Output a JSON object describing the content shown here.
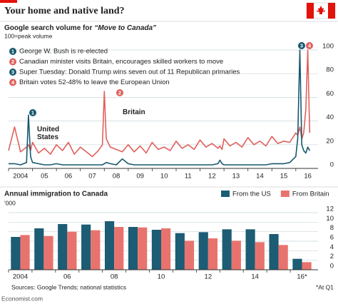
{
  "header": {
    "title": "Your home and native land?"
  },
  "chart_data": [
    {
      "type": "line",
      "subtitle": "Google search volume for",
      "subtitle_query": "“Move to Canada”",
      "y_label": "100=peak volume",
      "annotations": [
        {
          "number": "1",
          "text": "George W. Bush is re-elected",
          "color": "#17586f"
        },
        {
          "number": "2",
          "text": "Canadian minister visits Britain, encourages skilled workers to move",
          "color": "#e0605c"
        },
        {
          "number": "3",
          "text": "Super Tuesday: Donald Trump wins seven out of 11 Republican primaries",
          "color": "#17586f"
        },
        {
          "number": "4",
          "text": "Britain votes 52-48% to leave the European Union",
          "color": "#e0605c"
        }
      ],
      "x": [
        2004.0,
        2004.25,
        2004.5,
        2004.75,
        2004.83,
        2004.92,
        2005.0,
        2005.25,
        2005.5,
        2005.75,
        2006.0,
        2006.25,
        2006.5,
        2006.75,
        2007.0,
        2007.25,
        2007.5,
        2007.75,
        2007.92,
        2008.0,
        2008.08,
        2008.25,
        2008.5,
        2008.75,
        2009.0,
        2009.25,
        2009.5,
        2009.75,
        2010.0,
        2010.25,
        2010.5,
        2010.75,
        2011.0,
        2011.25,
        2011.5,
        2011.75,
        2012.0,
        2012.25,
        2012.5,
        2012.75,
        2012.83,
        2012.92,
        2013.0,
        2013.25,
        2013.5,
        2013.75,
        2014.0,
        2014.25,
        2014.5,
        2014.75,
        2015.0,
        2015.25,
        2015.5,
        2015.75,
        2016.0,
        2016.08,
        2016.17,
        2016.25,
        2016.33,
        2016.42,
        2016.5,
        2016.58
      ],
      "series": [
        {
          "name": "United States",
          "color": "#17586f",
          "values": [
            4,
            4,
            3,
            5,
            45,
            10,
            5,
            4,
            3,
            3,
            4,
            3,
            3,
            3,
            3,
            3,
            3,
            3,
            3,
            4,
            5,
            4,
            3,
            8,
            4,
            3,
            3,
            3,
            3,
            3,
            3,
            3,
            3,
            3,
            3,
            3,
            3,
            3,
            3,
            4,
            7,
            4,
            3,
            3,
            3,
            3,
            3,
            3,
            3,
            3,
            4,
            4,
            4,
            5,
            10,
            25,
            100,
            20,
            15,
            13,
            18,
            15
          ]
        },
        {
          "name": "Britain",
          "color": "#e0605c",
          "values": [
            15,
            35,
            14,
            18,
            20,
            15,
            22,
            13,
            17,
            12,
            20,
            15,
            22,
            12,
            18,
            14,
            10,
            15,
            20,
            65,
            25,
            18,
            16,
            14,
            20,
            14,
            19,
            13,
            22,
            16,
            18,
            15,
            23,
            17,
            20,
            16,
            24,
            18,
            21,
            17,
            19,
            16,
            25,
            19,
            22,
            18,
            26,
            20,
            23,
            19,
            27,
            21,
            23,
            22,
            30,
            28,
            35,
            25,
            30,
            50,
            100,
            30
          ]
        }
      ],
      "xlim": [
        2004,
        2016.75
      ],
      "xticks": [
        2004,
        {
          "value": 2005,
          "label": "05"
        },
        {
          "value": 2006,
          "label": "06"
        },
        {
          "value": 2007,
          "label": "07"
        },
        {
          "value": 2008,
          "label": "08"
        },
        {
          "value": 2009,
          "label": "09"
        },
        {
          "value": 2010,
          "label": "10"
        },
        {
          "value": 2011,
          "label": "11"
        },
        {
          "value": 2012,
          "label": "12"
        },
        {
          "value": 2013,
          "label": "13"
        },
        {
          "value": 2014,
          "label": "14"
        },
        {
          "value": 2015,
          "label": "15"
        },
        {
          "value": 2016,
          "label": "16"
        }
      ],
      "ylim": [
        0,
        100
      ],
      "yticks": [
        0,
        20,
        40,
        60,
        80,
        100
      ],
      "grid": true
    },
    {
      "type": "bar",
      "subtitle": "Annual immigration to Canada",
      "y_label": "'000",
      "categories": [
        "2004",
        null,
        "06",
        null,
        "08",
        null,
        "10",
        null,
        "12",
        null,
        "14",
        null,
        "16*"
      ],
      "series": [
        {
          "name": "From the US",
          "color": "#1c5c74",
          "values": [
            6.9,
            8.7,
            9.6,
            9.5,
            10.2,
            9.0,
            8.4,
            7.7,
            7.9,
            8.5,
            8.5,
            7.5,
            2.3
          ]
        },
        {
          "name": "From Britain",
          "color": "#e8736e",
          "values": [
            7.3,
            7.1,
            8.0,
            8.3,
            9.0,
            8.9,
            8.7,
            6.1,
            6.6,
            6.1,
            5.8,
            5.2,
            1.6
          ]
        }
      ],
      "ylim": [
        0,
        12
      ],
      "yticks": [
        0,
        2,
        4,
        6,
        8,
        10,
        12
      ],
      "grid": true,
      "legend": "top-right"
    }
  ],
  "footer": {
    "source": "Sources: Google Trends; national statistics",
    "note": "*At Q1",
    "brand": "Economist.com"
  }
}
